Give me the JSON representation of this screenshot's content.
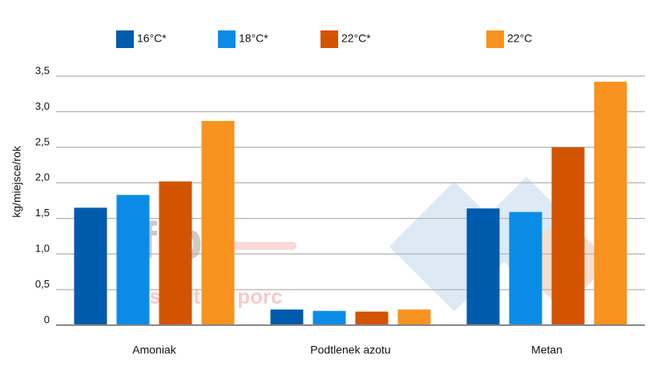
{
  "chart_data": {
    "type": "bar",
    "y_label": "kg/miejsce/rok",
    "categories": [
      "Amoniak",
      "Podtlenek azotu",
      "Metan"
    ],
    "series": [
      {
        "name": "16°C*",
        "color": "#005bac",
        "values": [
          1.65,
          0.22,
          1.64
        ]
      },
      {
        "name": "18°C*",
        "color": "#0a8ce6",
        "values": [
          1.83,
          0.2,
          1.59
        ]
      },
      {
        "name": "22°C*",
        "color": "#d35400",
        "values": [
          2.02,
          0.19,
          2.5
        ]
      },
      {
        "name": "22°C",
        "color": "#f7931e",
        "values": [
          2.87,
          0.22,
          3.42
        ]
      }
    ],
    "ylim": [
      0,
      3.5
    ],
    "yticks": [
      0,
      {
        "value": 0.5,
        "label": "0,5"
      },
      {
        "value": 1,
        "label": "1,0"
      },
      {
        "value": 1.5,
        "label": "1,5"
      },
      {
        "value": 2,
        "label": "2,0"
      },
      {
        "value": 2.5,
        "label": "2,5"
      },
      {
        "value": 3,
        "label": "3,0"
      },
      {
        "value": 3.5,
        "label": "3,5"
      }
    ],
    "grid": true,
    "watermark": [
      "ifip",
      "Institut du porc"
    ]
  }
}
